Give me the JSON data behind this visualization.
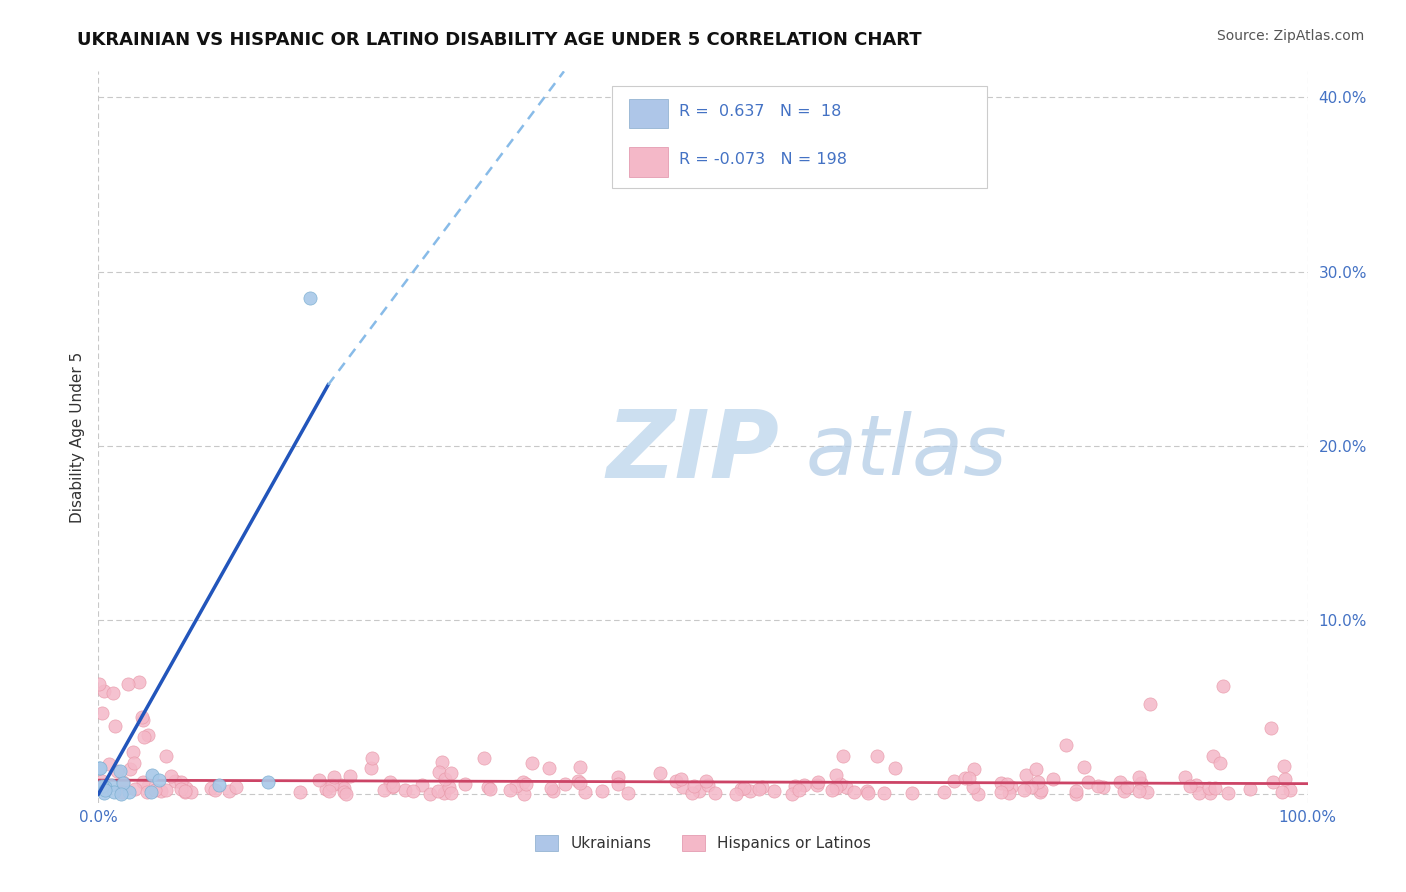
{
  "title": "UKRAINIAN VS HISPANIC OR LATINO DISABILITY AGE UNDER 5 CORRELATION CHART",
  "source": "Source: ZipAtlas.com",
  "ylabel": "Disability Age Under 5",
  "xlim": [
    0.0,
    1.0
  ],
  "ylim": [
    -0.005,
    0.415
  ],
  "yticks": [
    0.0,
    0.1,
    0.2,
    0.3,
    0.4
  ],
  "ytick_labels": [
    "",
    "10.0%",
    "20.0%",
    "30.0%",
    "40.0%"
  ],
  "R_color": "#4472c4",
  "background_color": "#ffffff",
  "grid_color": "#c8c8c8",
  "watermark_zip_color": "#ccdff0",
  "watermark_atlas_color": "#b8d0e8",
  "ukrainian_scatter_color": "#a8c8e8",
  "ukrainian_scatter_edge": "#7aaed0",
  "hispanic_scatter_color": "#f4b8c8",
  "hispanic_scatter_edge": "#e898a8",
  "ukrainian_line_color": "#2255bb",
  "hispanic_line_color": "#cc4466",
  "dashed_line_color": "#88bbe8",
  "title_fontsize": 13,
  "source_fontsize": 10,
  "tick_fontsize": 11,
  "ylabel_fontsize": 11
}
